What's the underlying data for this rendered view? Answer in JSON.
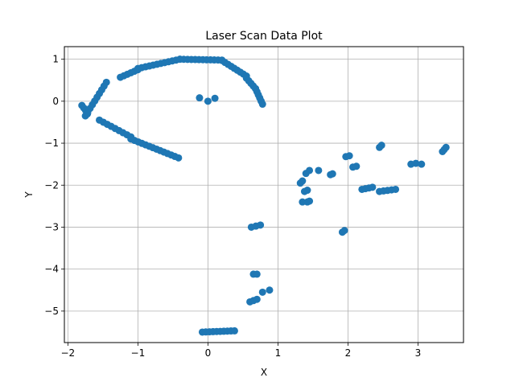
{
  "chart_data": {
    "type": "scatter",
    "title": "Laser Scan Data Plot",
    "xlabel": "X",
    "ylabel": "Y",
    "xlim": [
      -2.05,
      3.65
    ],
    "ylim": [
      -5.75,
      1.3
    ],
    "xticks": [
      -2,
      -1,
      0,
      1,
      2,
      3
    ],
    "yticks": [
      -5,
      -4,
      -3,
      -2,
      -1,
      0,
      1
    ],
    "grid": true,
    "marker_color": "#1f77b4",
    "segments": [
      {
        "from": [
          -1.75,
          -0.35
        ],
        "to": [
          -1.45,
          0.45
        ],
        "n": 10
      },
      {
        "from": [
          -1.8,
          -0.1
        ],
        "to": [
          -1.72,
          -0.28
        ],
        "n": 4
      },
      {
        "from": [
          -1.25,
          0.57
        ],
        "to": [
          -1.0,
          0.75
        ],
        "n": 6
      },
      {
        "from": [
          -1.0,
          0.78
        ],
        "to": [
          -0.4,
          1.0
        ],
        "n": 12
      },
      {
        "from": [
          -0.4,
          1.0
        ],
        "to": [
          0.2,
          0.98
        ],
        "n": 12
      },
      {
        "from": [
          0.2,
          0.97
        ],
        "to": [
          0.55,
          0.6
        ],
        "n": 9
      },
      {
        "from": [
          0.55,
          0.55
        ],
        "to": [
          0.68,
          0.3
        ],
        "n": 5
      },
      {
        "from": [
          0.68,
          0.3
        ],
        "to": [
          0.78,
          -0.07
        ],
        "n": 6
      },
      {
        "from": [
          -1.55,
          -0.45
        ],
        "to": [
          -1.1,
          -0.85
        ],
        "n": 9
      },
      {
        "from": [
          -1.1,
          -0.9
        ],
        "to": [
          -0.42,
          -1.35
        ],
        "n": 14
      },
      {
        "from": [
          0.62,
          -3.0
        ],
        "to": [
          0.75,
          -2.95
        ],
        "n": 3
      },
      {
        "from": [
          0.6,
          -4.78
        ],
        "to": [
          0.7,
          -4.72
        ],
        "n": 3
      },
      {
        "from": [
          0.78,
          -4.55
        ],
        "to": [
          0.88,
          -4.5
        ],
        "n": 2
      },
      {
        "from": [
          -0.08,
          -5.5
        ],
        "to": [
          0.38,
          -5.47
        ],
        "n": 10
      },
      {
        "from": [
          2.2,
          -2.1
        ],
        "to": [
          2.35,
          -2.05
        ],
        "n": 4
      },
      {
        "from": [
          2.45,
          -2.15
        ],
        "to": [
          2.68,
          -2.1
        ],
        "n": 5
      },
      {
        "from": [
          1.4,
          -1.72
        ],
        "to": [
          1.45,
          -1.65
        ],
        "n": 2
      },
      {
        "from": [
          3.35,
          -1.2
        ],
        "to": [
          3.4,
          -1.1
        ],
        "n": 3
      }
    ],
    "points": [
      [
        -0.12,
        0.08
      ],
      [
        0.0,
        0.0
      ],
      [
        0.1,
        0.07
      ],
      [
        0.65,
        -4.12
      ],
      [
        0.7,
        -4.12
      ],
      [
        -1.72,
        -0.3
      ],
      [
        1.32,
        -1.95
      ],
      [
        1.35,
        -1.9
      ],
      [
        1.38,
        -2.15
      ],
      [
        1.42,
        -2.12
      ],
      [
        1.35,
        -2.4
      ],
      [
        1.42,
        -2.4
      ],
      [
        1.45,
        -2.38
      ],
      [
        1.58,
        -1.65
      ],
      [
        1.75,
        -1.75
      ],
      [
        1.78,
        -1.73
      ],
      [
        1.92,
        -3.12
      ],
      [
        1.95,
        -3.08
      ],
      [
        1.97,
        -1.32
      ],
      [
        2.02,
        -1.3
      ],
      [
        2.07,
        -1.57
      ],
      [
        2.12,
        -1.55
      ],
      [
        2.45,
        -1.1
      ],
      [
        2.48,
        -1.05
      ],
      [
        2.9,
        -1.5
      ],
      [
        2.97,
        -1.48
      ],
      [
        3.05,
        -1.5
      ]
    ]
  }
}
